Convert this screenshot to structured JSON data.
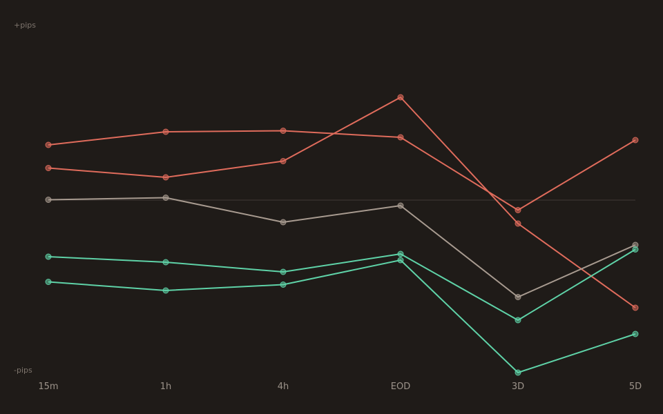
{
  "chart_data": {
    "type": "line",
    "categories": [
      "15m",
      "1h",
      "4h",
      "EOD",
      "3D",
      "5D"
    ],
    "y_top_label": "+pips",
    "y_bottom_label": "-pips",
    "ylim": [
      -100,
      100
    ],
    "baseline": 0,
    "grid": false,
    "legend": "none",
    "series": [
      {
        "color": "#e06c5c",
        "values": [
          32,
          39.6,
          40.2,
          36.4,
          -5.8,
          34.8
        ]
      },
      {
        "color": "#e06c5c",
        "values": [
          18.6,
          13.2,
          22.6,
          59.6,
          -13.6,
          -62.4
        ]
      },
      {
        "color": "#a89b90",
        "values": [
          0.2,
          1.4,
          -12.8,
          -3.2,
          -56.2,
          -26
        ]
      },
      {
        "color": "#5fd3a8",
        "values": [
          -32.8,
          -36,
          -41.6,
          -31.2,
          -69.6,
          -28.6
        ]
      },
      {
        "color": "#5fd3a8",
        "values": [
          -47.4,
          -52.4,
          -49,
          -34.8,
          -100,
          -77.6
        ]
      }
    ]
  },
  "colors": {
    "background": "#1f1b18",
    "baseline": "#3a3430",
    "negative": "#e06c5c",
    "neutral": "#a89b90",
    "positive": "#5fd3a8"
  }
}
